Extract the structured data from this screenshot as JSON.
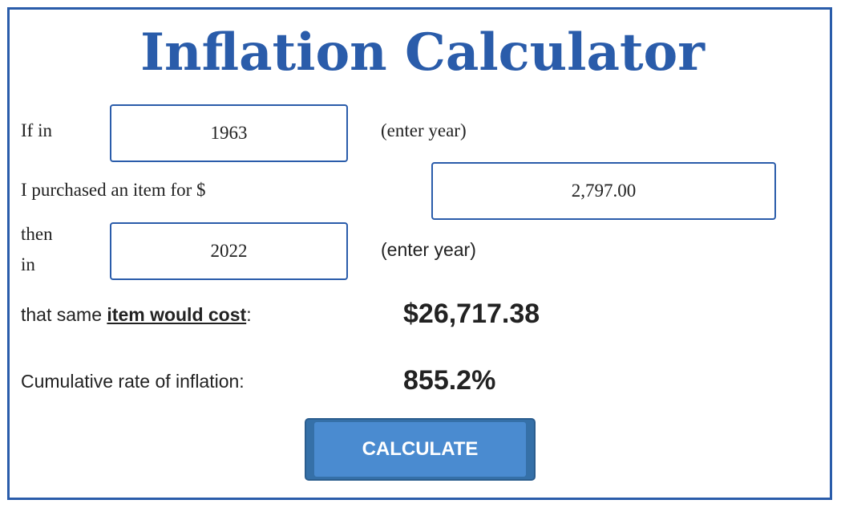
{
  "title": "Inflation Calculator",
  "row1": {
    "label": "If in",
    "value": "1963",
    "hint": "(enter year)"
  },
  "row2": {
    "label": "I purchased an item for $",
    "value": "2,797.00"
  },
  "row3": {
    "label_line1": "then",
    "label_line2": "in",
    "value": "2022",
    "hint": "(enter year)"
  },
  "result": {
    "prefix": "that same ",
    "emphasis": "item would cost",
    "suffix": ":",
    "value": "$26,717.38"
  },
  "inflation": {
    "label": "Cumulative rate of inflation:",
    "value": "855.2%"
  },
  "button": {
    "label": "CALCULATE"
  },
  "colors": {
    "accent": "#2a5caa",
    "button": "#4a8bd0"
  }
}
